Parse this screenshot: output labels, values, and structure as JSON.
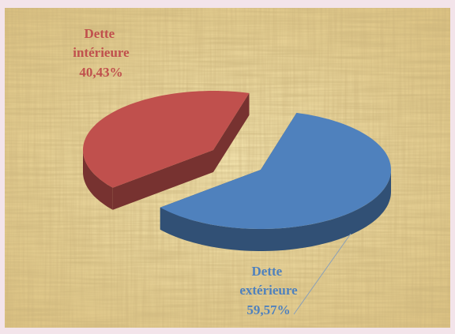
{
  "chart_data": {
    "type": "pie",
    "categories": [
      "Dette intérieure",
      "Dette extérieure"
    ],
    "values": [
      40.43,
      59.57
    ],
    "value_labels": [
      "40,43%",
      "59,57%"
    ],
    "colors": [
      "#c0504d",
      "#4f81bd"
    ]
  }
}
